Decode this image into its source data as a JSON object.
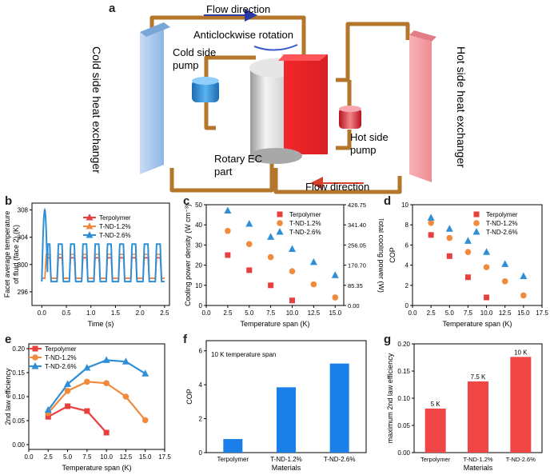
{
  "schematic": {
    "panel_letter": "a",
    "flow_top": "Flow direction",
    "flow_bottom": "Flow direction",
    "rotation": "Anticlockwise rotation",
    "cold_hx": "Cold side heat exchanger",
    "hot_hx": "Hot side heat exchanger",
    "cold_pump_1": "Cold side",
    "cold_pump_2": "pump",
    "hot_pump_1": "Hot side",
    "hot_pump_2": "pump",
    "rotary_1": "Rotary EC",
    "rotary_2": "part",
    "colors": {
      "cold": "#9cc3ea",
      "hot": "#f4a0a6",
      "pipe": "#b4762a",
      "red": "#e8262a",
      "pump_blue": "#2f8fd6"
    }
  },
  "charts": {
    "b": {
      "panel_letter": "b",
      "xlabel": "Time (s)",
      "ylabel_1": "Facet average temperature",
      "ylabel_2": "of fluid (face 2) (K)",
      "xticks": [
        "0.0",
        "0.5",
        "1.0",
        "1.5",
        "2.0",
        "2.5"
      ],
      "yticks": [
        "296",
        "300",
        "304",
        "308"
      ],
      "legend": [
        "Terpolymer",
        "T-ND-1.2%",
        "T-ND-2.6%"
      ]
    },
    "c": {
      "panel_letter": "c",
      "xlabel": "Temperature span (K)",
      "ylabel_left": "Cooling power density (W cm⁻³)",
      "ylabel_right": "Total cooling power (W)",
      "xticks": [
        "0.0",
        "2.5",
        "5.0",
        "7.5",
        "10.0",
        "12.5",
        "15.0"
      ],
      "yticks_left": [
        "0",
        "10",
        "20",
        "30",
        "40",
        "50"
      ],
      "yticks_right": [
        "0.00",
        "85.35",
        "170.70",
        "256.05",
        "341.40",
        "426.75"
      ],
      "legend": [
        "Terpolymer",
        "T-ND-1.2%",
        "T-ND-2.6%"
      ]
    },
    "d": {
      "panel_letter": "d",
      "xlabel": "Temperature span (K)",
      "ylabel": "COP",
      "xticks": [
        "0.0",
        "2.5",
        "5.0",
        "7.5",
        "10.0",
        "12.5",
        "15.0",
        "17.5"
      ],
      "yticks": [
        "0",
        "2",
        "4",
        "6",
        "8",
        "10"
      ],
      "legend": [
        "Terpolymer",
        "T-ND-1.2%",
        "T-ND-2.6%"
      ]
    },
    "e": {
      "panel_letter": "e",
      "xlabel": "Temperature span (K)",
      "ylabel": "2nd law efficiency",
      "xticks": [
        "0.0",
        "2.5",
        "5.0",
        "7.5",
        "10.0",
        "12.5",
        "15.0",
        "17.5"
      ],
      "yticks": [
        "0.00",
        "0.05",
        "0.10",
        "0.15",
        "0.20"
      ],
      "legend": [
        "Terpolymer",
        "T-ND-1.2%",
        "T-ND-2.6%"
      ]
    },
    "f": {
      "panel_letter": "f",
      "xlabel": "Materials",
      "ylabel": "COP",
      "annotation": "10 K temperature span",
      "yticks": [
        "0",
        "2",
        "4",
        "6"
      ]
    },
    "g": {
      "panel_letter": "g",
      "xlabel": "Materials",
      "ylabel": "maximum 2nd law efficiency",
      "yticks": [
        "0.00",
        "0.05",
        "0.10",
        "0.15",
        "0.20"
      ]
    }
  },
  "chart_data": [
    {
      "panel": "b",
      "type": "line",
      "xlim": [
        -0.2,
        2.6
      ],
      "ylim": [
        294,
        309
      ],
      "colors": [
        "#e8403f",
        "#f08a3c",
        "#2f8fd6"
      ],
      "series": [
        {
          "name": "Terpolymer",
          "cycle_period_s": 0.25,
          "baseline": 298,
          "peak": 301
        },
        {
          "name": "T-ND-1.2%",
          "cycle_period_s": 0.25,
          "baseline": 298,
          "peak": 301.5
        },
        {
          "name": "T-ND-2.6%",
          "cycle_period_s": 0.25,
          "baseline": 297.5,
          "peak": 303,
          "initial_peak": 308
        }
      ]
    },
    {
      "panel": "c",
      "type": "scatter",
      "x": [
        2.5,
        5.0,
        7.5,
        10.0,
        12.5,
        15.0
      ],
      "xlim": [
        0,
        16
      ],
      "ylim": [
        0,
        50
      ],
      "series": [
        {
          "name": "Terpolymer",
          "marker": "square",
          "color": "#e8403f",
          "values": [
            25,
            17.5,
            10,
            2.5,
            null,
            null
          ]
        },
        {
          "name": "T-ND-1.2%",
          "marker": "circle",
          "color": "#f08a3c",
          "values": [
            37,
            30.5,
            24,
            17,
            10.5,
            4
          ]
        },
        {
          "name": "T-ND-2.6%",
          "marker": "triangle",
          "color": "#2f8fd6",
          "values": [
            47,
            40.5,
            34,
            28,
            21.5,
            15
          ]
        }
      ]
    },
    {
      "panel": "d",
      "type": "scatter",
      "x": [
        2.5,
        5.0,
        7.5,
        10.0,
        12.5,
        15.0
      ],
      "xlim": [
        0,
        17.5
      ],
      "ylim": [
        0,
        10
      ],
      "series": [
        {
          "name": "Terpolymer",
          "marker": "square",
          "color": "#e8403f",
          "values": [
            7.0,
            4.9,
            2.8,
            0.8,
            null,
            null
          ]
        },
        {
          "name": "T-ND-1.2%",
          "marker": "circle",
          "color": "#f08a3c",
          "values": [
            8.2,
            6.7,
            5.3,
            3.8,
            2.4,
            1.0
          ]
        },
        {
          "name": "T-ND-2.6%",
          "marker": "triangle",
          "color": "#2f8fd6",
          "values": [
            8.7,
            7.6,
            6.4,
            5.3,
            4.1,
            2.9
          ]
        }
      ]
    },
    {
      "panel": "e",
      "type": "line",
      "x": [
        2.5,
        5.0,
        7.5,
        10.0,
        12.5,
        15.0
      ],
      "xlim": [
        0,
        17.5
      ],
      "ylim": [
        -0.01,
        0.21
      ],
      "series": [
        {
          "name": "Terpolymer",
          "marker": "square",
          "color": "#e8403f",
          "values": [
            0.058,
            0.08,
            0.07,
            0.025,
            null,
            null
          ]
        },
        {
          "name": "T-ND-1.2%",
          "marker": "circle",
          "color": "#f08a3c",
          "values": [
            0.066,
            0.112,
            0.131,
            0.128,
            0.1,
            0.051
          ]
        },
        {
          "name": "T-ND-2.6%",
          "marker": "triangle",
          "color": "#2f8fd6",
          "values": [
            0.072,
            0.126,
            0.16,
            0.176,
            0.173,
            0.148
          ]
        }
      ]
    },
    {
      "panel": "f",
      "type": "bar",
      "categories": [
        "Terpolymer",
        "T-ND-1.2%",
        "T-ND-2.6%"
      ],
      "values": [
        0.8,
        3.85,
        5.25
      ],
      "ylim": [
        0,
        6.6
      ],
      "color": "#1a7fe8"
    },
    {
      "panel": "g",
      "type": "bar",
      "categories": [
        "Terpolymer",
        "T-ND-1.2%",
        "T-ND-2.6%"
      ],
      "values": [
        0.081,
        0.131,
        0.176
      ],
      "bar_labels": [
        "5 K",
        "7.5 K",
        "10 K"
      ],
      "ylim": [
        0,
        0.2
      ],
      "color": "#f04646"
    }
  ]
}
